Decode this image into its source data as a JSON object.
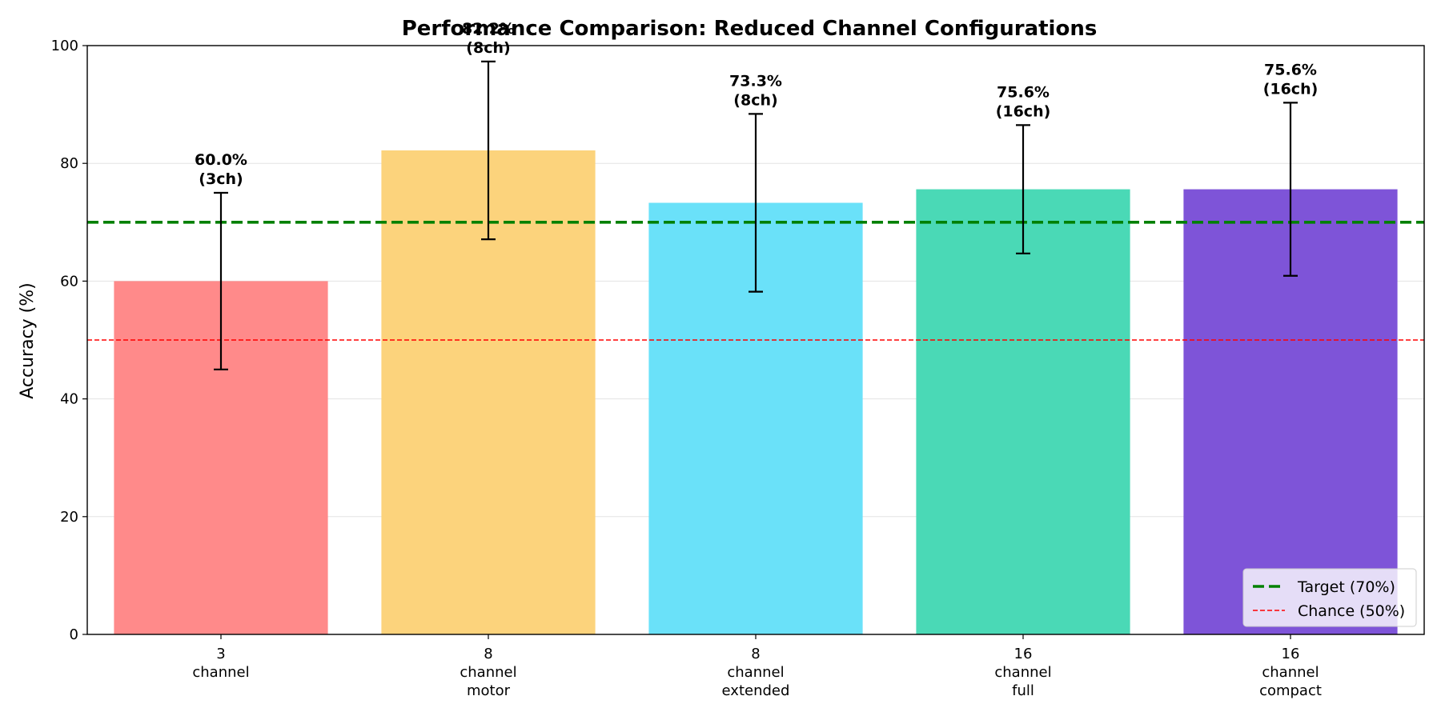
{
  "chart_data": {
    "type": "bar",
    "title": "Performance Comparison: Reduced Channel Configurations",
    "ylabel": "Accuracy (%)",
    "xlabel": "",
    "ylim": [
      0,
      100
    ],
    "yticks": [
      0,
      20,
      40,
      60,
      80,
      100
    ],
    "grid": "horizontal",
    "categories": [
      [
        "3",
        "channel"
      ],
      [
        "8",
        "channel",
        "motor"
      ],
      [
        "8",
        "channel",
        "extended"
      ],
      [
        "16",
        "channel",
        "full"
      ],
      [
        "16",
        "channel",
        "compact"
      ]
    ],
    "values": [
      60.0,
      82.2,
      73.3,
      75.6,
      75.6
    ],
    "error": [
      15.0,
      15.1,
      15.1,
      10.9,
      14.7
    ],
    "value_labels": [
      [
        "60.0%",
        "(3ch)"
      ],
      [
        "82.2%",
        "(8ch)"
      ],
      [
        "73.3%",
        "(8ch)"
      ],
      [
        "75.6%",
        "(16ch)"
      ],
      [
        "75.6%",
        "(16ch)"
      ]
    ],
    "colors": [
      "#ff8a8a",
      "#fcd37c",
      "#6ae1f9",
      "#4ad9b6",
      "#7e54d8"
    ],
    "reference_lines": [
      {
        "name": "Target (70%)",
        "value": 70,
        "color": "#008000",
        "style": "dashed-thick"
      },
      {
        "name": "Chance (50%)",
        "value": 50,
        "color": "#ff0000",
        "style": "dashed-thin"
      }
    ],
    "legend_position": "lower-right"
  }
}
